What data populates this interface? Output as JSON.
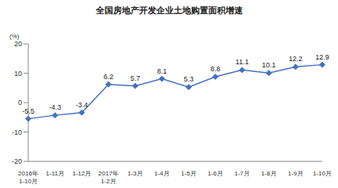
{
  "chart_data": {
    "type": "line",
    "title": "全国房地产开发企业土地购置面积增速",
    "y_label": "(%)",
    "categories": [
      "2016年1-10月",
      "1-11月",
      "1-12月",
      "2017年1-2月",
      "1-3月",
      "1-4月",
      "1-5月",
      "1-6月",
      "1-7月",
      "1-8月",
      "1-9月",
      "1-10月"
    ],
    "values": [
      -5.5,
      -4.3,
      -3.4,
      6.2,
      5.7,
      8.1,
      5.3,
      8.8,
      11.1,
      10.1,
      12.2,
      12.9
    ],
    "color": "#4472c4",
    "marker": "diamond",
    "ylim": [
      -20,
      20
    ],
    "yticks": [
      -20,
      -10,
      0,
      10,
      20
    ],
    "grid": false,
    "data_labels": true
  }
}
